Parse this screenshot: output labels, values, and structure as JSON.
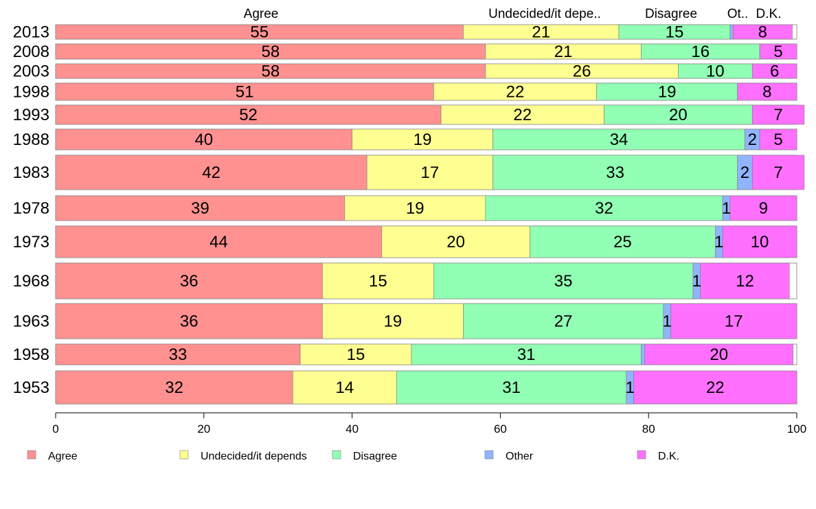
{
  "chart_data": {
    "type": "bar",
    "orientation": "horizontal",
    "stacked": true,
    "categories": [
      "2013",
      "2008",
      "2003",
      "1998",
      "1993",
      "1988",
      "1983",
      "1978",
      "1973",
      "1968",
      "1963",
      "1958",
      "1953"
    ],
    "series": [
      {
        "name": "Agree",
        "color": "#ff9191",
        "values": [
          55,
          58,
          58,
          51,
          52,
          40,
          42,
          39,
          44,
          36,
          36,
          33,
          32
        ]
      },
      {
        "name": "Undecided/it depends",
        "color": "#ffff91",
        "values": [
          21,
          21,
          26,
          22,
          22,
          19,
          17,
          19,
          20,
          15,
          19,
          15,
          14
        ]
      },
      {
        "name": "Disagree",
        "color": "#91ffb4",
        "values": [
          15,
          16,
          10,
          19,
          20,
          34,
          33,
          32,
          25,
          35,
          27,
          31,
          31
        ]
      },
      {
        "name": "Other",
        "color": "#91b4ff",
        "values": [
          0.4,
          0,
          0,
          0,
          0,
          2,
          2,
          1,
          1,
          1,
          1,
          0.5,
          1
        ]
      },
      {
        "name": "D.K.",
        "color": "#ff70ff",
        "values": [
          8,
          5,
          6,
          8,
          7,
          5,
          7,
          9,
          10,
          12,
          17,
          20,
          22
        ]
      }
    ],
    "data_labels": [
      [
        "55",
        "21",
        "15",
        "",
        "8"
      ],
      [
        "58",
        "21",
        "16",
        "",
        "5"
      ],
      [
        "58",
        "26",
        "10",
        "",
        "6"
      ],
      [
        "51",
        "22",
        "19",
        "",
        "8"
      ],
      [
        "52",
        "22",
        "20",
        "",
        "7"
      ],
      [
        "40",
        "19",
        "34",
        "2",
        "5"
      ],
      [
        "42",
        "17",
        "33",
        "2",
        "7"
      ],
      [
        "39",
        "19",
        "32",
        "1",
        "9"
      ],
      [
        "44",
        "20",
        "25",
        "1",
        "10"
      ],
      [
        "36",
        "15",
        "35",
        "1",
        "12"
      ],
      [
        "36",
        "19",
        "27",
        "1",
        "17"
      ],
      [
        "33",
        "15",
        "31",
        "",
        "20"
      ],
      [
        "32",
        "14",
        "31",
        "1",
        "22"
      ]
    ],
    "top_labels": [
      "Agree",
      "Undecided/it depe..",
      "Disagree",
      "Ot..",
      "D.K."
    ],
    "x_ticks": [
      "0",
      "20",
      "40",
      "60",
      "80",
      "100"
    ],
    "xlim": [
      0,
      100
    ],
    "legend": [
      "Agree",
      "Undecided/it depends",
      "Disagree",
      "Other",
      "D.K."
    ],
    "legend_position": "bottom",
    "grid": false
  }
}
